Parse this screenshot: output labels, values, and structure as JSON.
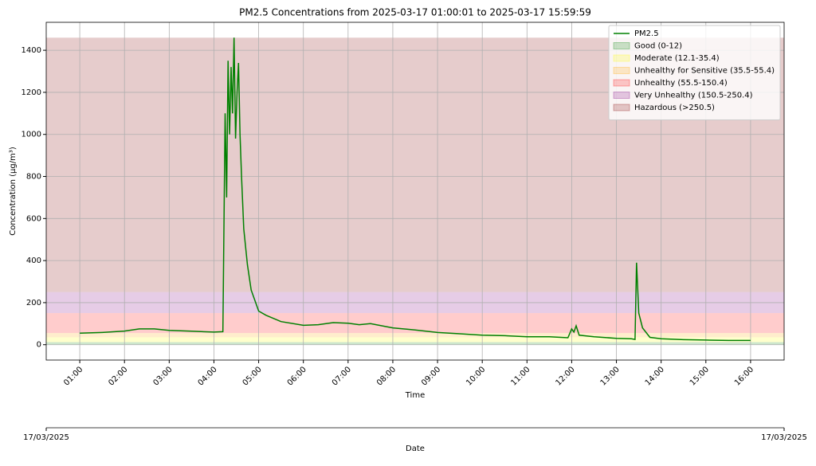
{
  "chart_data": {
    "type": "line",
    "title": "PM2.5 Concentrations from 2025-03-17 01:00:01 to 2025-03-17 15:59:59",
    "x_label": "Time",
    "y_label": "Concentration (µg/m³)",
    "x": [
      "01:00",
      "01:30",
      "02:00",
      "02:20",
      "02:40",
      "03:00",
      "03:30",
      "04:00",
      "04:12",
      "04:13",
      "04:15",
      "04:17",
      "04:19",
      "04:21",
      "04:23",
      "04:25",
      "04:27",
      "04:29",
      "04:31",
      "04:33",
      "04:35",
      "04:37",
      "04:40",
      "04:45",
      "04:50",
      "04:55",
      "05:00",
      "05:10",
      "05:30",
      "06:00",
      "06:20",
      "06:40",
      "07:00",
      "07:15",
      "07:30",
      "08:00",
      "08:30",
      "09:00",
      "09:30",
      "10:00",
      "10:30",
      "11:00",
      "11:30",
      "11:55",
      "12:00",
      "12:03",
      "12:06",
      "12:10",
      "12:30",
      "13:00",
      "13:20",
      "13:25",
      "13:27",
      "13:30",
      "13:35",
      "13:45",
      "14:00",
      "14:30",
      "15:00",
      "15:30",
      "16:00"
    ],
    "series": [
      {
        "name": "PM2.5",
        "color": "#008000",
        "values": [
          55,
          58,
          65,
          75,
          75,
          68,
          64,
          60,
          62,
          400,
          1100,
          700,
          1350,
          1000,
          1320,
          1100,
          1460,
          980,
          1200,
          1340,
          1000,
          800,
          550,
          380,
          260,
          210,
          160,
          140,
          110,
          92,
          95,
          105,
          102,
          95,
          100,
          80,
          70,
          58,
          52,
          45,
          43,
          38,
          38,
          33,
          75,
          60,
          90,
          45,
          38,
          30,
          28,
          25,
          390,
          150,
          80,
          35,
          28,
          24,
          22,
          20,
          20
        ]
      }
    ],
    "bands": [
      {
        "name": "Good (0-12)",
        "color": "#008000",
        "range": [
          0,
          12
        ]
      },
      {
        "name": "Moderate (12.1-35.4)",
        "color": "#ffff00",
        "range": [
          12.1,
          35.4
        ]
      },
      {
        "name": "Unhealthy for Sensitive (35.5-55.4)",
        "color": "#ffa500",
        "range": [
          35.5,
          55.4
        ]
      },
      {
        "name": "Unhealthy (55.5-150.4)",
        "color": "#ff0000",
        "range": [
          55.5,
          150.4
        ]
      },
      {
        "name": "Very Unhealthy (150.5-250.4)",
        "color": "#800080",
        "range": [
          150.5,
          250.4
        ]
      },
      {
        "name": "Hazardous (>250.5)",
        "color": "#800000",
        "range": [
          250.5,
          1460
        ]
      }
    ],
    "band_alpha": 0.2,
    "xlim": [
      "00:15",
      "16:45"
    ],
    "xticks": [
      "01:00",
      "02:00",
      "03:00",
      "04:00",
      "05:00",
      "06:00",
      "07:00",
      "08:00",
      "09:00",
      "10:00",
      "11:00",
      "12:00",
      "13:00",
      "14:00",
      "15:00",
      "16:00"
    ],
    "ylim": [
      -73,
      1533
    ],
    "yticks": [
      0,
      200,
      400,
      600,
      800,
      1000,
      1200,
      1400
    ],
    "grid": true,
    "legend": "upper right",
    "date_axis": {
      "label": "Date",
      "ticks": [
        "17/03/2025",
        "17/03/2025"
      ]
    }
  }
}
